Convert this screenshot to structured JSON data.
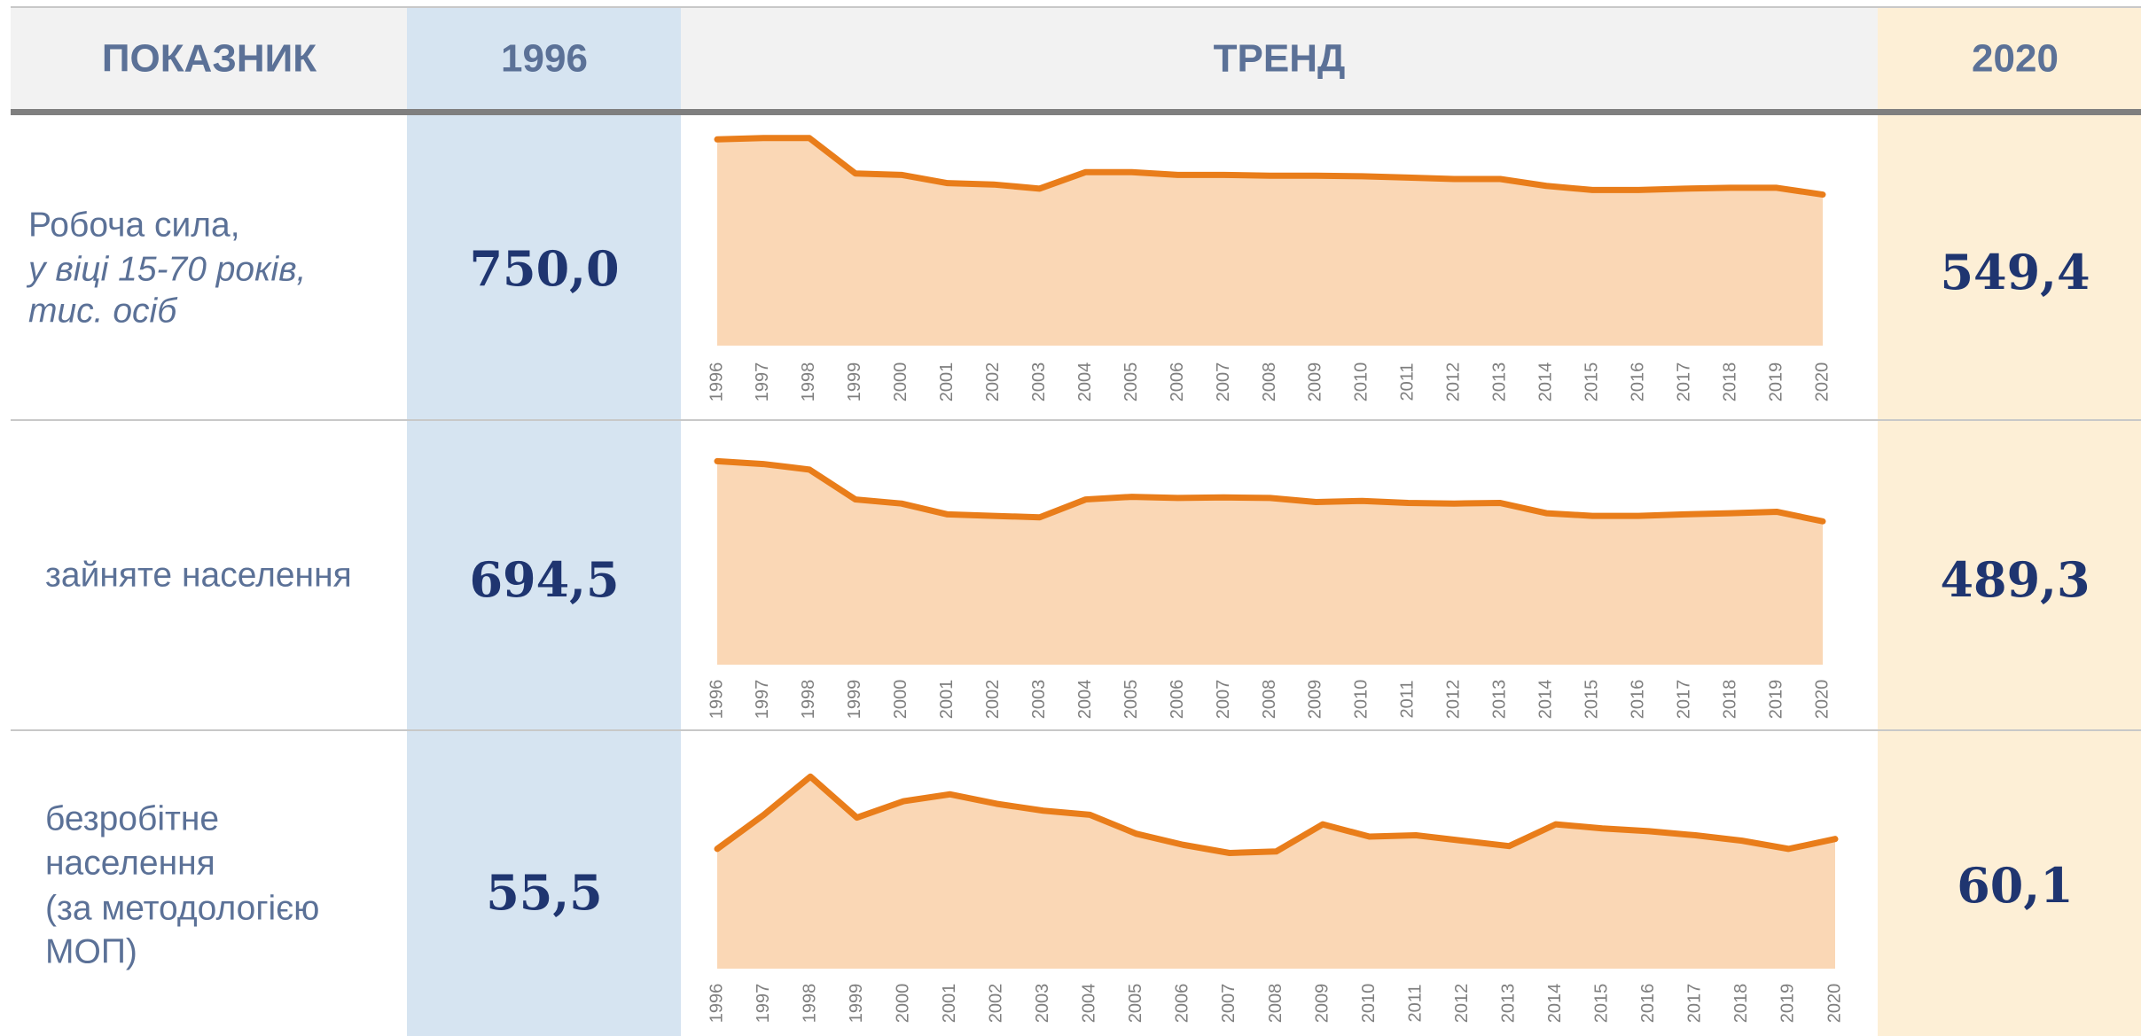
{
  "header": [
    "ПОКАЗНИК",
    "1996",
    "ТРЕНД",
    "2020"
  ],
  "rows": [
    {
      "label": [
        "Робоча сила,",
        "у віці 15-70 років,",
        "тис. осіб"
      ],
      "start": "750,0",
      "end": "549,4"
    },
    {
      "label": [
        "зайняте населення"
      ],
      "start": "694,5",
      "end": "489,3"
    },
    {
      "label": [
        "безробітне",
        "населення",
        "(за методологією",
        "МОП)"
      ],
      "start": "55,5",
      "end": "60,1"
    }
  ],
  "chart_data": [
    {
      "type": "area",
      "color": "#e97d1a",
      "fill": "#fad7b5",
      "x": [
        1996,
        1997,
        1998,
        1999,
        2000,
        2001,
        2002,
        2003,
        2004,
        2005,
        2006,
        2007,
        2008,
        2009,
        2010,
        2011,
        2012,
        2013,
        2014,
        2015,
        2016,
        2017,
        2018,
        2019,
        2020
      ],
      "values": [
        750,
        755,
        755,
        626,
        621,
        591,
        586,
        571,
        631,
        631,
        621,
        621,
        618,
        618,
        616,
        611,
        606,
        606,
        581,
        566,
        566,
        571,
        574,
        574,
        549.4
      ],
      "xlim": [
        1996,
        2020
      ],
      "ylim": [
        0,
        780
      ]
    },
    {
      "type": "area",
      "color": "#e97d1a",
      "fill": "#fad7b5",
      "x": [
        1996,
        1997,
        1998,
        1999,
        2000,
        2001,
        2002,
        2003,
        2004,
        2005,
        2006,
        2007,
        2008,
        2009,
        2010,
        2011,
        2012,
        2013,
        2014,
        2015,
        2016,
        2017,
        2018,
        2019,
        2020
      ],
      "values": [
        694.5,
        685,
        666,
        564,
        550,
        513,
        508,
        503,
        564,
        573,
        569,
        571,
        569,
        555,
        559,
        552,
        550,
        552,
        517,
        508,
        508,
        513,
        517,
        522,
        489.3
      ],
      "xlim": [
        1996,
        2020
      ],
      "ylim": [
        0,
        720
      ]
    },
    {
      "type": "area",
      "color": "#e97d1a",
      "fill": "#fad7b5",
      "x": [
        1996,
        1997,
        1998,
        1999,
        2000,
        2001,
        2002,
        2003,
        2004,
        2005,
        2006,
        2007,
        2008,
        2009,
        2010,
        2011,
        2012,
        2013,
        2014,
        2015,
        2016,
        2017,
        2018,
        2019,
        2020
      ],
      "values": [
        55.5,
        71.3,
        89,
        70,
        77.6,
        80.8,
        76.4,
        73.2,
        71.3,
        62.5,
        57.4,
        53.6,
        54.3,
        66.9,
        61.2,
        61.8,
        59.3,
        56.8,
        66.9,
        65,
        63.7,
        61.8,
        59.3,
        55.5,
        60.1
      ],
      "xlim": [
        1996,
        2020
      ],
      "ylim": [
        0,
        92
      ]
    }
  ]
}
